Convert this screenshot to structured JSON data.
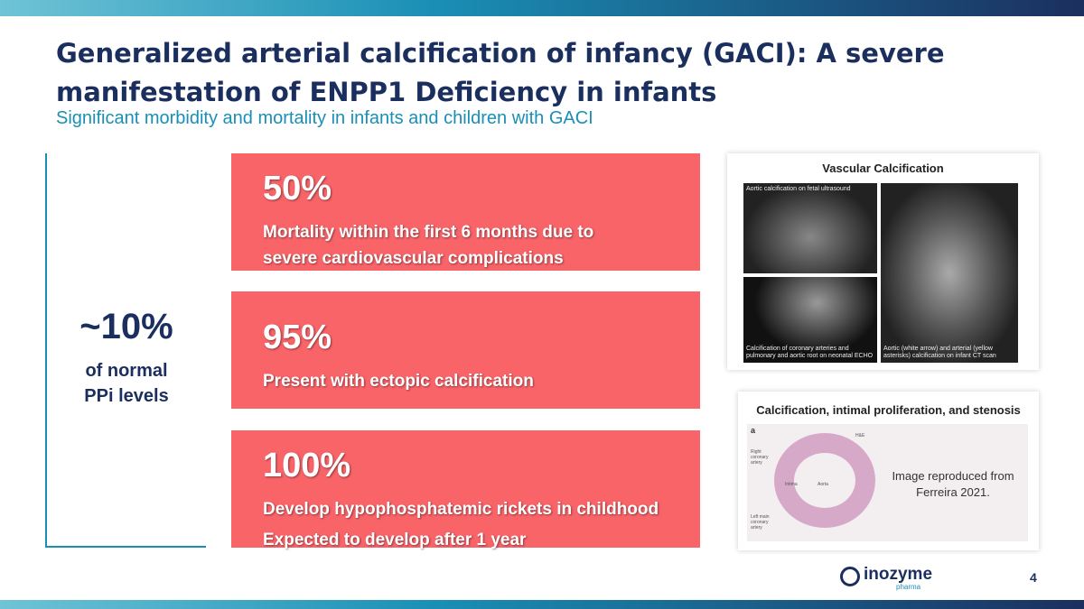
{
  "header": {
    "title": "Generalized arterial calcification of infancy (GACI): A severe manifestation of ENPP1 Deficiency in infants",
    "subtitle": "Significant morbidity and mortality in infants and children with GACI"
  },
  "ppi": {
    "value": "~10%",
    "label": "of normal PPi levels"
  },
  "stats": [
    {
      "value": "50%",
      "lines": [
        "Mortality within the first 6 months due to severe cardiovascular complications"
      ]
    },
    {
      "value": "95%",
      "lines": [
        "Present with ectopic calcification"
      ]
    },
    {
      "value": "100%",
      "lines": [
        "Develop hypophosphatemic rickets in childhood",
        "Expected to develop after 1 year"
      ]
    }
  ],
  "vascular": {
    "title": "Vascular Calcification",
    "captions": [
      "Aortic calcification on fetal ultrasound",
      "Calcification of coronary arteries and pulmonary and aortic root on neonatal ECHO",
      "Aortic (white arrow) and arterial (yellow asterisks) calcification on infant CT scan"
    ]
  },
  "histology": {
    "title": "Calcification, intimal proliferation, and stenosis",
    "labels": [
      "a",
      "H&E",
      "Right coronary artery",
      "Intima",
      "Aorta",
      "Left main coronary artery"
    ],
    "credit": "Image reproduced from Ferreira 2021."
  },
  "footer": {
    "brand": "inozyme",
    "tagline": "pharma",
    "page": "4"
  }
}
